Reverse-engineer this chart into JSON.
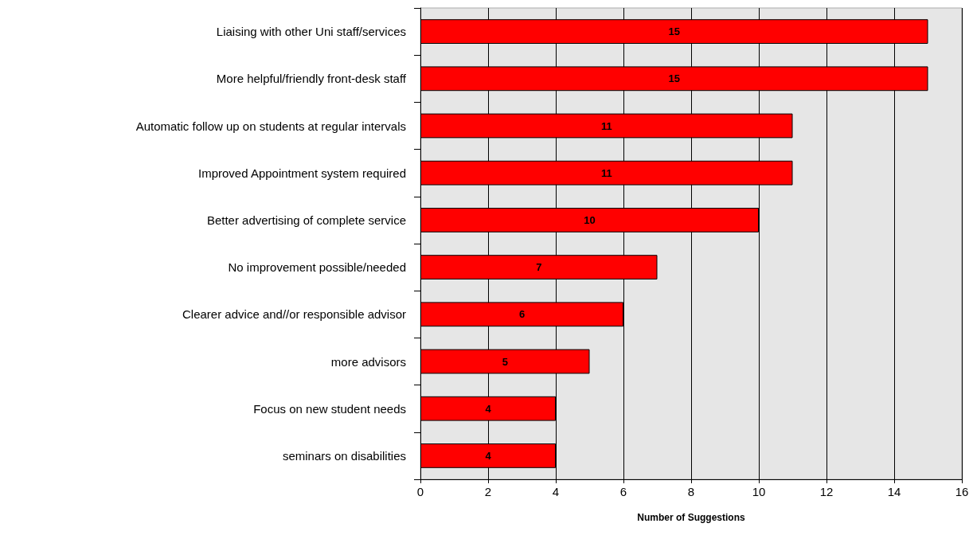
{
  "chart_data": {
    "type": "bar",
    "orientation": "horizontal",
    "xlabel": "Number of Suggestions",
    "categories": [
      "Liaising with other Uni staff/services",
      "More helpful/friendly front-desk staff",
      "Automatic follow up on students at regular intervals",
      "Improved Appointment system required",
      "Better advertising of complete service",
      "No improvement possible/needed",
      "Clearer advice and//or responsible advisor",
      "more advisors",
      "Focus on new student needs",
      "seminars on disabilities"
    ],
    "values": [
      15,
      15,
      11,
      11,
      10,
      7,
      6,
      5,
      4,
      4
    ],
    "color": "#ff0000",
    "xlim": [
      0,
      16
    ],
    "xticks": [
      0,
      2,
      4,
      6,
      8,
      10,
      12,
      14,
      16
    ],
    "grid": "x",
    "data_labels": true
  }
}
